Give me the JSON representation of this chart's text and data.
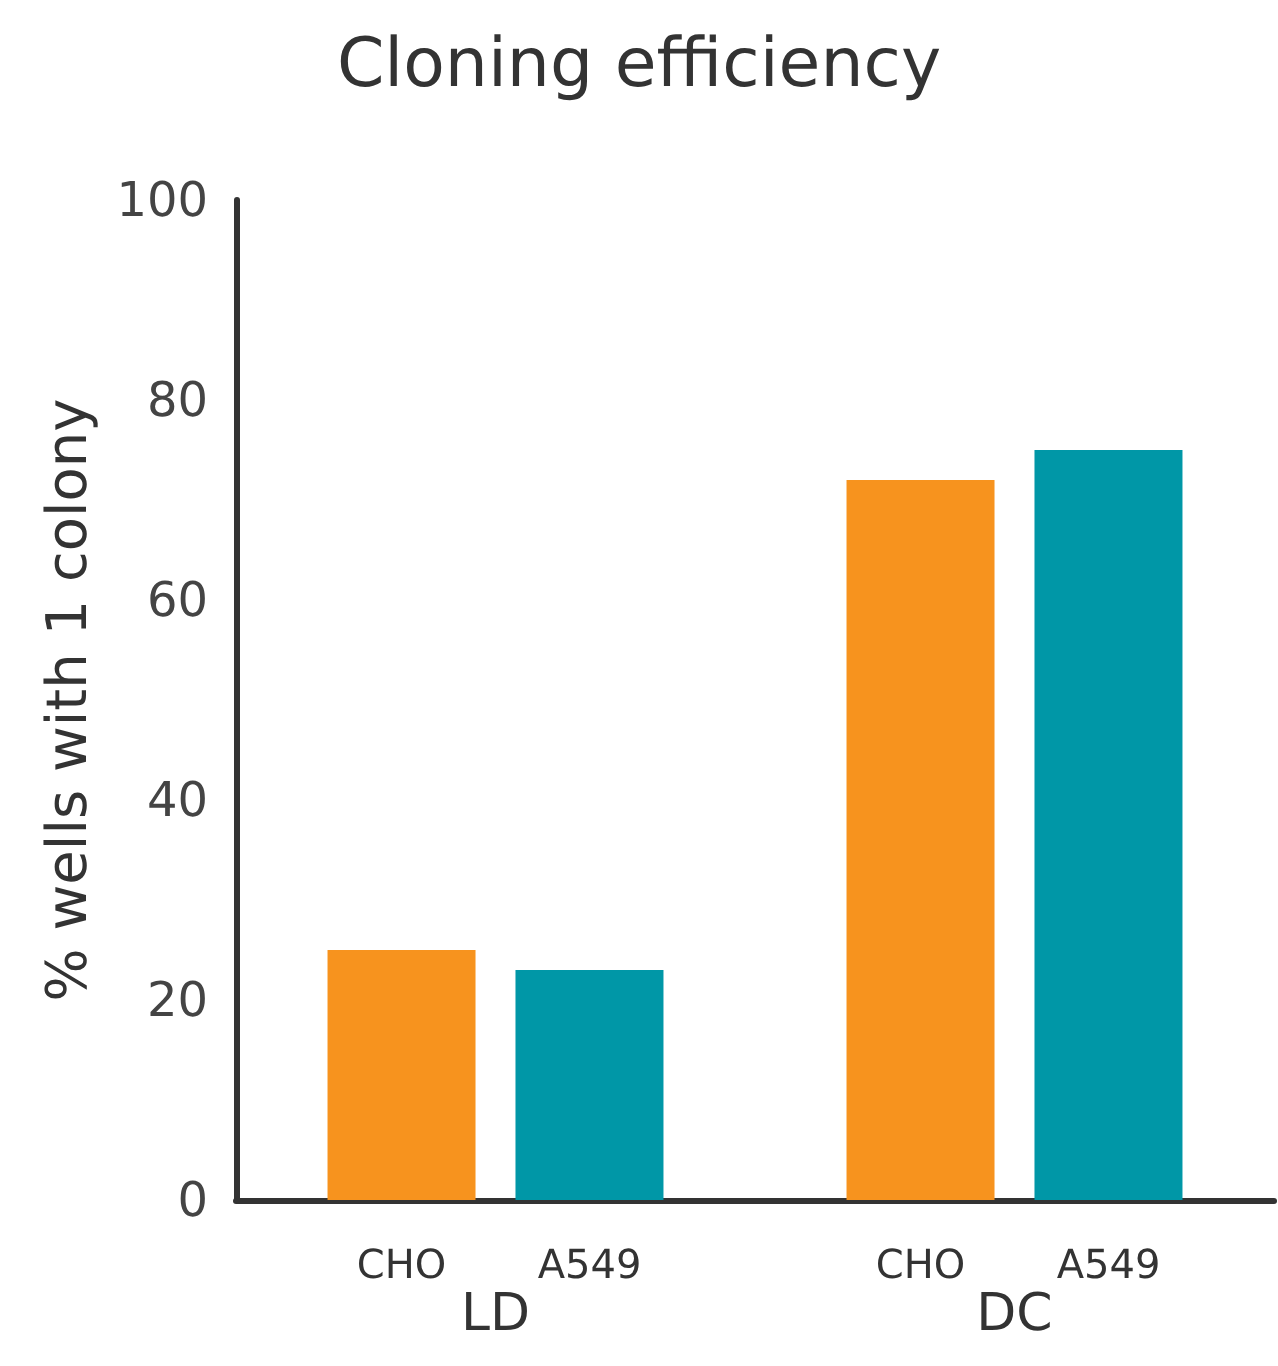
{
  "chart_data": {
    "type": "bar",
    "title": "Cloning efficiency",
    "ylabel": "% wells with 1 colony",
    "categories": [
      "LD",
      "DC"
    ],
    "series": [
      {
        "name": "CHO",
        "color": "#f7931e",
        "values": [
          25,
          72
        ]
      },
      {
        "name": "A549",
        "color": "#0097a7",
        "values": [
          23,
          75
        ]
      }
    ],
    "ylim": [
      0,
      100
    ],
    "yticks": [
      0,
      20,
      40,
      60,
      80,
      100
    ],
    "grid": false,
    "legend": false
  }
}
